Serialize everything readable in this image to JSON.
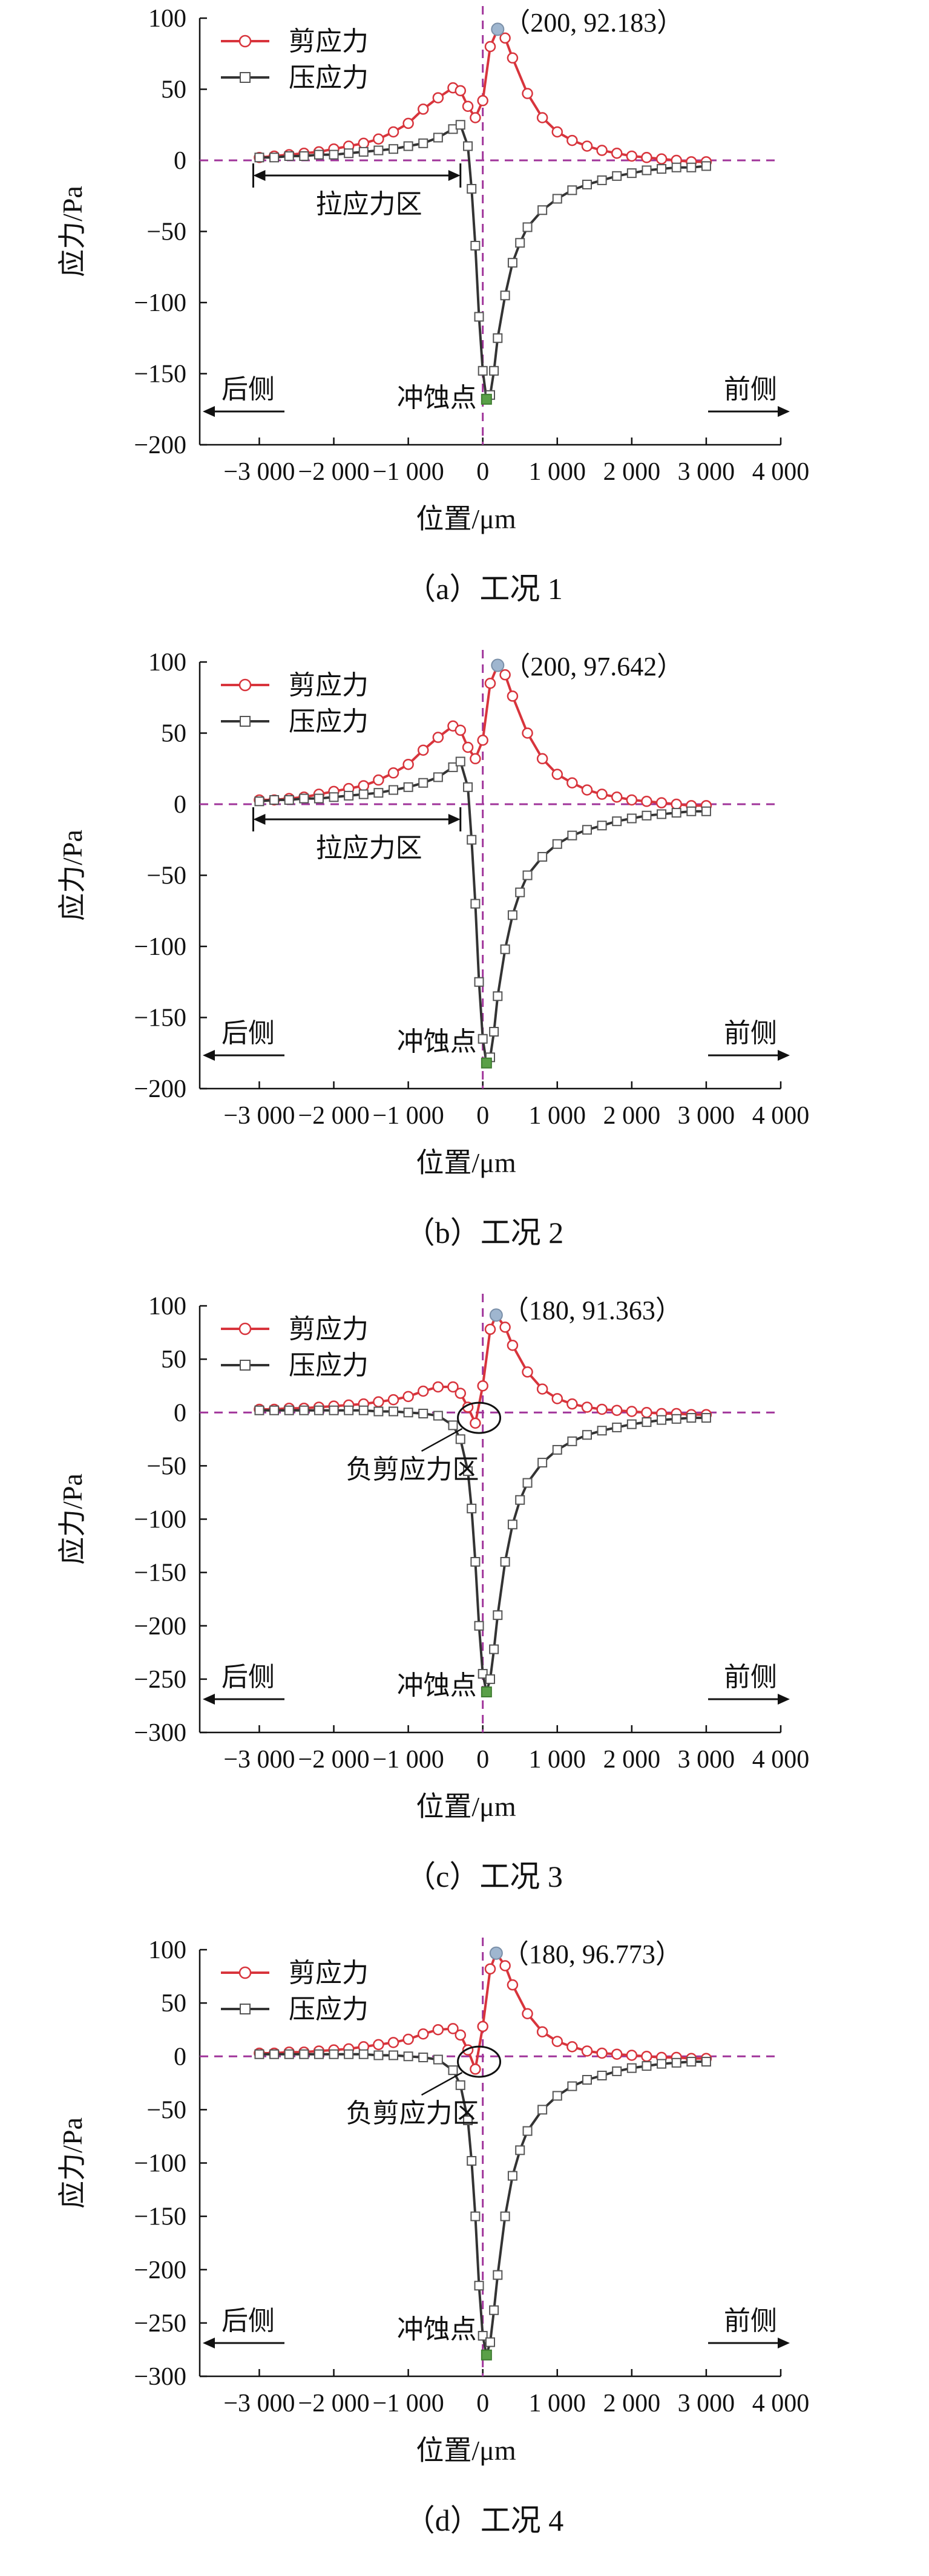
{
  "chart_data": [
    {
      "type": "line",
      "caption": "（a）工况 1",
      "xlabel": "位置/μm",
      "ylabel": "应力/Pa",
      "xlim": [
        -3800,
        4000
      ],
      "ylim": [
        -200,
        100
      ],
      "xticks": [
        -3000,
        -2000,
        -1000,
        0,
        1000,
        2000,
        3000,
        4000
      ],
      "xtick_labels": [
        "−3 000",
        "−2 000",
        "−1 000",
        "0",
        "1 000",
        "2 000",
        "3 000",
        "4 000"
      ],
      "yticks": [
        100,
        50,
        0,
        -50,
        -100,
        -150,
        -200
      ],
      "ytick_labels": [
        "100",
        "50",
        "0",
        "−50",
        "−100",
        "−150",
        "−200"
      ],
      "series": [
        {
          "name": "剪应力",
          "color": "#d8343c",
          "marker": "circle",
          "x": [
            -3000,
            -2800,
            -2600,
            -2400,
            -2200,
            -2000,
            -1800,
            -1600,
            -1400,
            -1200,
            -1000,
            -800,
            -600,
            -400,
            -300,
            -200,
            -100,
            0,
            100,
            200,
            300,
            400,
            600,
            800,
            1000,
            1200,
            1400,
            1600,
            1800,
            2000,
            2200,
            2400,
            2600,
            2800,
            3000
          ],
          "y": [
            2,
            3,
            4,
            5,
            6,
            8,
            10,
            12,
            15,
            20,
            26,
            36,
            44,
            51,
            49,
            38,
            30,
            42,
            80,
            92.183,
            86,
            72,
            47,
            30,
            20,
            14,
            10,
            7,
            5,
            3,
            2,
            1,
            0,
            -1,
            -1
          ]
        },
        {
          "name": "压应力",
          "color": "#333333",
          "marker": "square",
          "x": [
            -3000,
            -2800,
            -2600,
            -2400,
            -2200,
            -2000,
            -1800,
            -1600,
            -1400,
            -1200,
            -1000,
            -800,
            -600,
            -400,
            -300,
            -200,
            -150,
            -100,
            -50,
            0,
            50,
            100,
            150,
            200,
            300,
            400,
            500,
            600,
            800,
            1000,
            1200,
            1400,
            1600,
            1800,
            2000,
            2200,
            2400,
            2600,
            2800,
            3000
          ],
          "y": [
            2,
            2,
            3,
            3,
            4,
            4,
            5,
            6,
            7,
            8,
            10,
            12,
            16,
            22,
            25,
            10,
            -20,
            -60,
            -110,
            -148,
            -168,
            -165,
            -148,
            -125,
            -95,
            -72,
            -58,
            -47,
            -35,
            -27,
            -21,
            -17,
            -14,
            -11,
            -9,
            -7,
            -6,
            -5,
            -5,
            -4
          ]
        }
      ],
      "peak_label": "（200, 92.183）",
      "back_label": "后侧",
      "front_label": "前侧",
      "erosion_label": "冲蚀点",
      "zone_label": "拉应力区"
    },
    {
      "type": "line",
      "caption": "（b）工况 2",
      "xlabel": "位置/μm",
      "ylabel": "应力/Pa",
      "xlim": [
        -3800,
        4000
      ],
      "ylim": [
        -200,
        100
      ],
      "xticks": [
        -3000,
        -2000,
        -1000,
        0,
        1000,
        2000,
        3000,
        4000
      ],
      "xtick_labels": [
        "−3 000",
        "−2 000",
        "−1 000",
        "0",
        "1 000",
        "2 000",
        "3 000",
        "4 000"
      ],
      "yticks": [
        100,
        50,
        0,
        -50,
        -100,
        -150,
        -200
      ],
      "ytick_labels": [
        "100",
        "50",
        "0",
        "−50",
        "−100",
        "−150",
        "−200"
      ],
      "series": [
        {
          "name": "剪应力",
          "color": "#d8343c",
          "marker": "circle",
          "x": [
            -3000,
            -2800,
            -2600,
            -2400,
            -2200,
            -2000,
            -1800,
            -1600,
            -1400,
            -1200,
            -1000,
            -800,
            -600,
            -400,
            -300,
            -200,
            -100,
            0,
            100,
            200,
            300,
            400,
            600,
            800,
            1000,
            1200,
            1400,
            1600,
            1800,
            2000,
            2200,
            2400,
            2600,
            2800,
            3000
          ],
          "y": [
            3,
            3,
            4,
            5,
            7,
            9,
            11,
            13,
            17,
            22,
            28,
            38,
            47,
            55,
            52,
            40,
            32,
            45,
            85,
            97.642,
            91,
            76,
            50,
            32,
            21,
            15,
            10,
            7,
            5,
            3,
            2,
            1,
            0,
            -1,
            -1
          ]
        },
        {
          "name": "压应力",
          "color": "#333333",
          "marker": "square",
          "x": [
            -3000,
            -2800,
            -2600,
            -2400,
            -2200,
            -2000,
            -1800,
            -1600,
            -1400,
            -1200,
            -1000,
            -800,
            -600,
            -400,
            -300,
            -200,
            -150,
            -100,
            -50,
            0,
            50,
            100,
            150,
            200,
            300,
            400,
            500,
            600,
            800,
            1000,
            1200,
            1400,
            1600,
            1800,
            2000,
            2200,
            2400,
            2600,
            2800,
            3000
          ],
          "y": [
            2,
            3,
            3,
            4,
            4,
            5,
            6,
            7,
            8,
            10,
            12,
            15,
            19,
            26,
            30,
            12,
            -25,
            -70,
            -125,
            -165,
            -182,
            -178,
            -160,
            -135,
            -102,
            -78,
            -62,
            -50,
            -37,
            -28,
            -22,
            -18,
            -15,
            -12,
            -10,
            -8,
            -7,
            -6,
            -5,
            -5
          ]
        }
      ],
      "peak_label": "（200, 97.642）",
      "back_label": "后侧",
      "front_label": "前侧",
      "erosion_label": "冲蚀点",
      "zone_label": "拉应力区"
    },
    {
      "type": "line",
      "caption": "（c）工况 3",
      "xlabel": "位置/μm",
      "ylabel": "应力/Pa",
      "xlim": [
        -3800,
        4000
      ],
      "ylim": [
        -300,
        100
      ],
      "xticks": [
        -3000,
        -2000,
        -1000,
        0,
        1000,
        2000,
        3000,
        4000
      ],
      "xtick_labels": [
        "−3 000",
        "−2 000",
        "−1 000",
        "0",
        "1 000",
        "2 000",
        "3 000",
        "4 000"
      ],
      "yticks": [
        100,
        50,
        0,
        -50,
        -100,
        -150,
        -200,
        -250,
        -300
      ],
      "ytick_labels": [
        "100",
        "50",
        "0",
        "−50",
        "−100",
        "−150",
        "−200",
        "−250",
        "−300"
      ],
      "series": [
        {
          "name": "剪应力",
          "color": "#d8343c",
          "marker": "circle",
          "x": [
            -3000,
            -2800,
            -2600,
            -2400,
            -2200,
            -2000,
            -1800,
            -1600,
            -1400,
            -1200,
            -1000,
            -800,
            -600,
            -400,
            -300,
            -200,
            -100,
            0,
            100,
            180,
            300,
            400,
            600,
            800,
            1000,
            1200,
            1400,
            1600,
            1800,
            2000,
            2200,
            2400,
            2600,
            2800,
            3000
          ],
          "y": [
            3,
            3,
            4,
            4,
            5,
            6,
            7,
            8,
            10,
            12,
            15,
            20,
            24,
            24,
            18,
            5,
            -10,
            25,
            78,
            91.363,
            80,
            63,
            38,
            22,
            13,
            8,
            5,
            3,
            2,
            1,
            0,
            -1,
            -1,
            -2,
            -2
          ]
        },
        {
          "name": "压应力",
          "color": "#333333",
          "marker": "square",
          "x": [
            -3000,
            -2800,
            -2600,
            -2400,
            -2200,
            -2000,
            -1800,
            -1600,
            -1400,
            -1200,
            -1000,
            -800,
            -600,
            -400,
            -300,
            -200,
            -150,
            -100,
            -50,
            0,
            50,
            100,
            150,
            200,
            300,
            400,
            500,
            600,
            800,
            1000,
            1200,
            1400,
            1600,
            1800,
            2000,
            2200,
            2400,
            2600,
            2800,
            3000
          ],
          "y": [
            2,
            2,
            2,
            2,
            2,
            2,
            2,
            2,
            1,
            1,
            0,
            -1,
            -3,
            -12,
            -25,
            -55,
            -90,
            -140,
            -200,
            -245,
            -262,
            -250,
            -222,
            -190,
            -140,
            -105,
            -82,
            -66,
            -47,
            -35,
            -27,
            -21,
            -17,
            -14,
            -11,
            -9,
            -7,
            -6,
            -5,
            -5
          ]
        }
      ],
      "peak_label": "（180, 91.363）",
      "back_label": "后侧",
      "front_label": "前侧",
      "erosion_label": "冲蚀点",
      "zone_label": "负剪应力区"
    },
    {
      "type": "line",
      "caption": "（d）工况 4",
      "xlabel": "位置/μm",
      "ylabel": "应力/Pa",
      "xlim": [
        -3800,
        4000
      ],
      "ylim": [
        -300,
        100
      ],
      "xticks": [
        -3000,
        -2000,
        -1000,
        0,
        1000,
        2000,
        3000,
        4000
      ],
      "xtick_labels": [
        "−3 000",
        "−2 000",
        "−1 000",
        "0",
        "1 000",
        "2 000",
        "3 000",
        "4 000"
      ],
      "yticks": [
        100,
        50,
        0,
        -50,
        -100,
        -150,
        -200,
        -250,
        -300
      ],
      "ytick_labels": [
        "100",
        "50",
        "0",
        "−50",
        "−100",
        "−150",
        "−200",
        "−250",
        "−300"
      ],
      "series": [
        {
          "name": "剪应力",
          "color": "#d8343c",
          "marker": "circle",
          "x": [
            -3000,
            -2800,
            -2600,
            -2400,
            -2200,
            -2000,
            -1800,
            -1600,
            -1400,
            -1200,
            -1000,
            -800,
            -600,
            -400,
            -300,
            -200,
            -100,
            0,
            100,
            180,
            300,
            400,
            600,
            800,
            1000,
            1200,
            1400,
            1600,
            1800,
            2000,
            2200,
            2400,
            2600,
            2800,
            3000
          ],
          "y": [
            3,
            3,
            4,
            4,
            5,
            6,
            7,
            9,
            11,
            13,
            16,
            21,
            25,
            26,
            20,
            6,
            -12,
            28,
            82,
            96.773,
            85,
            67,
            40,
            23,
            14,
            9,
            5,
            3,
            2,
            1,
            0,
            -1,
            -1,
            -2,
            -2
          ]
        },
        {
          "name": "压应力",
          "color": "#333333",
          "marker": "square",
          "x": [
            -3000,
            -2800,
            -2600,
            -2400,
            -2200,
            -2000,
            -1800,
            -1600,
            -1400,
            -1200,
            -1000,
            -800,
            -600,
            -400,
            -300,
            -200,
            -150,
            -100,
            -50,
            0,
            50,
            100,
            150,
            200,
            300,
            400,
            500,
            600,
            800,
            1000,
            1200,
            1400,
            1600,
            1800,
            2000,
            2200,
            2400,
            2600,
            2800,
            3000
          ],
          "y": [
            2,
            2,
            2,
            2,
            2,
            2,
            2,
            2,
            1,
            1,
            0,
            -1,
            -3,
            -13,
            -27,
            -60,
            -98,
            -150,
            -215,
            -262,
            -280,
            -268,
            -238,
            -205,
            -150,
            -112,
            -88,
            -70,
            -50,
            -37,
            -28,
            -22,
            -18,
            -14,
            -11,
            -9,
            -7,
            -6,
            -5,
            -5
          ]
        }
      ],
      "peak_label": "（180, 96.773）",
      "back_label": "后侧",
      "front_label": "前侧",
      "erosion_label": "冲蚀点",
      "zone_label": "负剪应力区"
    }
  ]
}
